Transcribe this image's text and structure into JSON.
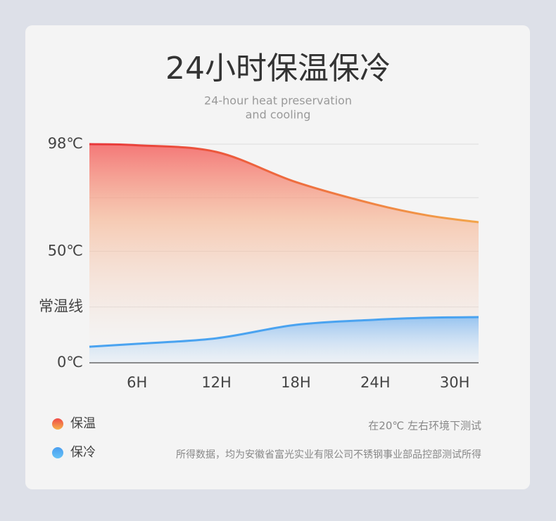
{
  "chart_data": {
    "type": "area",
    "title": "24小时保温保冷",
    "subtitle": [
      "24-hour heat preservation",
      "and cooling"
    ],
    "x_ticks_labels_note": null,
    "xlim": [
      2.4,
      31.8
    ],
    "xticks": [
      {
        "value": 6,
        "label": "6H"
      },
      {
        "value": 12,
        "label": "12H"
      },
      {
        "value": 18,
        "label": "18H"
      },
      {
        "value": 24,
        "label": "24H"
      },
      {
        "value": 30,
        "label": "30H"
      }
    ],
    "ylim": [
      0,
      98
    ],
    "yticks": [
      {
        "value": 0,
        "label": "0℃"
      },
      {
        "value": 25,
        "label": "常温线"
      },
      {
        "value": 50,
        "label": "50℃"
      },
      {
        "value": 74,
        "label": null
      },
      {
        "value": 98,
        "label": "98℃"
      }
    ],
    "grid": true,
    "series": [
      {
        "name": "保温",
        "color": "#e8453c",
        "x": [
          2.4,
          6,
          12,
          18,
          24,
          28,
          31.8
        ],
        "values": [
          98,
          97.5,
          94.5,
          81,
          71,
          66,
          63
        ]
      },
      {
        "name": "保冷",
        "color": "#4aa3f0",
        "x": [
          2.4,
          6,
          12,
          18,
          24,
          28,
          31.8
        ],
        "values": [
          7.2,
          8.5,
          11,
          17,
          19.3,
          20.2,
          20.5
        ]
      }
    ],
    "notes": [
      "在20℃ 左右环境下测试",
      "所得数据，均为安徽省富光实业有限公司不锈钢事业部品控部测试所得"
    ]
  }
}
